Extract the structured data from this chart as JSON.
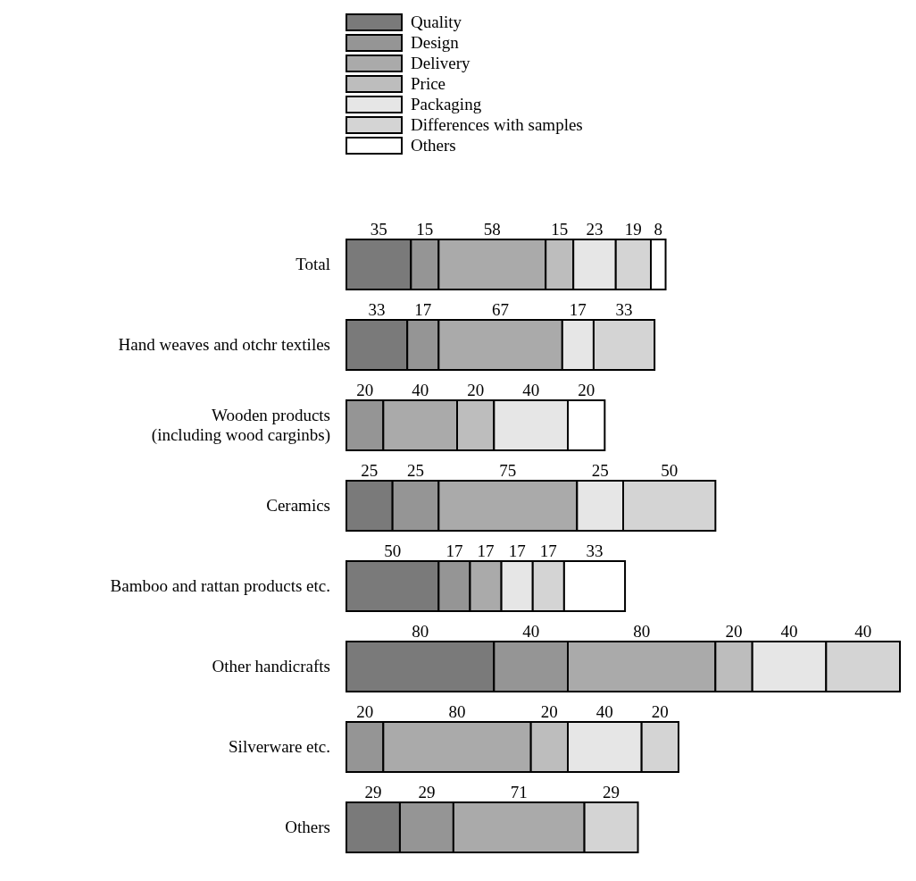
{
  "chart_data": {
    "type": "bar",
    "orientation": "horizontal",
    "stacked": true,
    "data_labels": true,
    "legend": "top",
    "categories": [
      "Total",
      "Hand weaves and otchr textiles",
      "Wooden products\n(including wood carginbs)",
      "Ceramics",
      "Bamboo and rattan products etc.",
      "Other handicrafts",
      "Silverware etc.",
      "Others"
    ],
    "xlim": [
      0,
      300
    ],
    "tick_labels": "y",
    "series": [
      {
        "name": "Quality",
        "color": "#7a7a7a",
        "values": [
          35,
          33,
          null,
          25,
          50,
          80,
          null,
          29
        ]
      },
      {
        "name": "Design",
        "color": "#959595",
        "values": [
          15,
          17,
          20,
          25,
          17,
          40,
          20,
          29
        ]
      },
      {
        "name": "Delivery",
        "color": "#aaaaaa",
        "values": [
          58,
          67,
          40,
          75,
          17,
          80,
          80,
          71
        ]
      },
      {
        "name": "Price",
        "color": "#bdbdbd",
        "values": [
          15,
          null,
          20,
          null,
          null,
          20,
          20,
          null
        ]
      },
      {
        "name": "Packaging",
        "color": "#e6e6e6",
        "values": [
          23,
          17,
          40,
          25,
          17,
          40,
          40,
          null
        ]
      },
      {
        "name": "Differences with samples",
        "color": "#d4d4d4",
        "values": [
          19,
          33,
          null,
          50,
          17,
          40,
          20,
          29
        ]
      },
      {
        "name": "Others",
        "color": "#ffffff",
        "values": [
          8,
          null,
          20,
          null,
          33,
          null,
          null,
          null
        ]
      }
    ]
  }
}
